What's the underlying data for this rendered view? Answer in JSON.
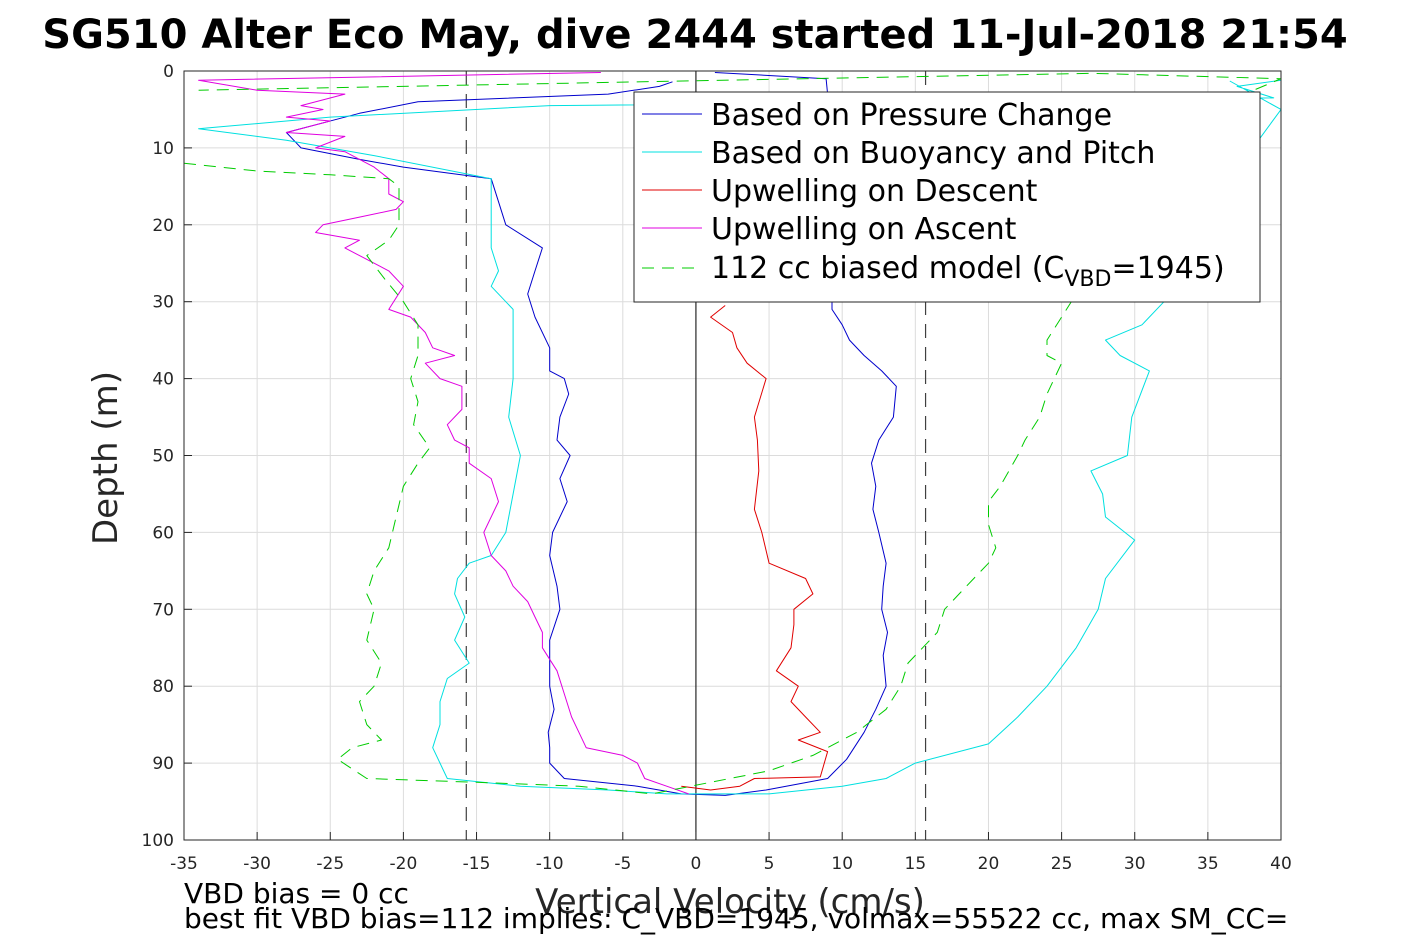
{
  "chart_data": {
    "type": "line",
    "title": "SG510 Alter Eco May, dive 2444 started 11-Jul-2018 21:54",
    "xlabel": "Vertical Velocity (cm/s)",
    "ylabel": "Depth (m)",
    "xlim": [
      -35,
      40
    ],
    "ylim": [
      0,
      100
    ],
    "y_reversed": true,
    "grid": true,
    "x_ticks": [
      "-35",
      "-30",
      "-25",
      "-20",
      "-15",
      "-10",
      "-5",
      "0",
      "5",
      "10",
      "15",
      "20",
      "25",
      "30",
      "35",
      "40"
    ],
    "y_ticks": [
      "0",
      "10",
      "20",
      "30",
      "40",
      "50",
      "60",
      "70",
      "80",
      "90",
      "100"
    ],
    "legend_position": "top-right",
    "legend": {
      "pressure": "Based on Pressure Change",
      "buoyancy": "Based on Buoyancy and Pitch",
      "up_descent": "Upwelling on Descent",
      "up_ascent": "Upwelling on Ascent",
      "model_prefix": "112 cc biased model (C",
      "model_sub": "VBD",
      "model_suffix": "=1945)"
    },
    "reference_lines": {
      "zero_x": 0,
      "dashed_x": [
        -15.7,
        15.7
      ]
    },
    "series": [
      {
        "name": "Based on Pressure Change",
        "key": "pressure",
        "color": "#0000cc",
        "style": "solid",
        "points": [
          [
            -1.6,
            1.4
          ],
          [
            -2.5,
            2
          ],
          [
            -6,
            3
          ],
          [
            -19,
            4
          ],
          [
            -23,
            5.5
          ],
          [
            -26,
            7
          ],
          [
            -28,
            8
          ],
          [
            -27.5,
            9
          ],
          [
            -27,
            10
          ],
          [
            -23,
            11.5
          ],
          [
            -20,
            12.5
          ],
          [
            -14,
            14
          ],
          [
            -13.5,
            17
          ],
          [
            -13,
            20
          ],
          [
            -10.5,
            23
          ],
          [
            -11,
            26
          ],
          [
            -11.5,
            29
          ],
          [
            -11,
            32
          ],
          [
            -10,
            36
          ],
          [
            -10,
            39
          ],
          [
            -9,
            40
          ],
          [
            -8.7,
            42
          ],
          [
            -9.3,
            45
          ],
          [
            -9.5,
            48
          ],
          [
            -8.6,
            50
          ],
          [
            -9.3,
            53
          ],
          [
            -8.8,
            56
          ],
          [
            -9.8,
            60
          ],
          [
            -10,
            63
          ],
          [
            -9.5,
            67
          ],
          [
            -9.3,
            70
          ],
          [
            -10,
            74
          ],
          [
            -10,
            77
          ],
          [
            -10,
            80
          ],
          [
            -9.7,
            83
          ],
          [
            -10.1,
            86
          ],
          [
            -10,
            88
          ],
          [
            -10,
            90
          ],
          [
            -9,
            92
          ],
          [
            -4,
            93
          ],
          [
            -1,
            94
          ],
          [
            2,
            94.2
          ],
          [
            4.8,
            93.5
          ],
          [
            9,
            92
          ],
          [
            10.3,
            89.5
          ],
          [
            11.5,
            86
          ],
          [
            12.3,
            83
          ],
          [
            13,
            80
          ],
          [
            12.8,
            76
          ],
          [
            13.1,
            73
          ],
          [
            12.7,
            70
          ],
          [
            12.8,
            67
          ],
          [
            13,
            64
          ],
          [
            12.5,
            60
          ],
          [
            12.1,
            57
          ],
          [
            12.3,
            54
          ],
          [
            12,
            51
          ],
          [
            12.5,
            48
          ],
          [
            13.5,
            45
          ],
          [
            13.7,
            41
          ],
          [
            12.7,
            39
          ],
          [
            11.5,
            37
          ],
          [
            10.5,
            35
          ],
          [
            10,
            33
          ],
          [
            9.3,
            31
          ],
          [
            9.3,
            30
          ],
          [
            9,
            10
          ],
          [
            9,
            6
          ],
          [
            9,
            3
          ],
          [
            8.9,
            1
          ],
          [
            1.3,
            0.2
          ]
        ]
      },
      {
        "name": "Based on Buoyancy and Pitch",
        "key": "buoyancy",
        "color": "#00e0e0",
        "style": "solid",
        "points": [
          [
            40,
            1.2
          ],
          [
            37,
            2
          ],
          [
            39.5,
            3.5
          ],
          [
            20,
            4
          ],
          [
            -10,
            4.5
          ],
          [
            -25,
            6
          ],
          [
            -34,
            7.5
          ],
          [
            -28,
            9
          ],
          [
            -22,
            11
          ],
          [
            -14,
            14
          ],
          [
            -14,
            17
          ],
          [
            -14,
            20
          ],
          [
            -14,
            23
          ],
          [
            -13.5,
            26
          ],
          [
            -14,
            28
          ],
          [
            -12.5,
            31
          ],
          [
            -12.5,
            35
          ],
          [
            -12.5,
            40
          ],
          [
            -12.8,
            45
          ],
          [
            -12,
            50
          ],
          [
            -12.5,
            55
          ],
          [
            -13,
            60
          ],
          [
            -14,
            63
          ],
          [
            -15.5,
            64
          ],
          [
            -16.3,
            66
          ],
          [
            -16.5,
            68
          ],
          [
            -15.8,
            71
          ],
          [
            -16.5,
            74
          ],
          [
            -15.5,
            77
          ],
          [
            -17,
            79
          ],
          [
            -17.5,
            82
          ],
          [
            -17.5,
            85
          ],
          [
            -18,
            88
          ],
          [
            -17.5,
            90
          ],
          [
            -17,
            92
          ],
          [
            -12,
            93
          ],
          [
            -6,
            93.5
          ],
          [
            -2,
            94
          ],
          [
            5,
            94
          ],
          [
            10,
            93
          ],
          [
            13,
            92
          ],
          [
            15,
            90
          ],
          [
            20,
            87.5
          ],
          [
            22,
            84
          ],
          [
            24,
            80
          ],
          [
            26,
            75
          ],
          [
            27.5,
            70
          ],
          [
            28,
            66
          ],
          [
            30,
            61
          ],
          [
            28,
            58
          ],
          [
            27.8,
            55
          ],
          [
            27,
            52
          ],
          [
            29.5,
            50
          ],
          [
            29.8,
            45
          ],
          [
            31,
            39
          ],
          [
            29,
            37
          ],
          [
            28,
            35
          ],
          [
            30.5,
            33
          ],
          [
            32,
            30
          ],
          [
            33,
            25
          ],
          [
            35,
            18
          ],
          [
            40,
            5
          ],
          [
            36.5,
            1.3
          ]
        ]
      },
      {
        "name": "Upwelling on Descent",
        "key": "up_descent",
        "color": "#e00000",
        "style": "solid",
        "points": [
          [
            -1,
            93
          ],
          [
            1,
            93.5
          ],
          [
            3,
            93
          ],
          [
            4,
            92
          ],
          [
            8.5,
            91.8
          ],
          [
            9,
            88.5
          ],
          [
            7,
            87
          ],
          [
            8.5,
            86
          ],
          [
            7.5,
            84
          ],
          [
            6.5,
            82
          ],
          [
            7,
            80
          ],
          [
            5.5,
            78
          ],
          [
            6.5,
            75
          ],
          [
            6.7,
            72
          ],
          [
            6.7,
            70
          ],
          [
            8,
            68
          ],
          [
            7.5,
            66
          ],
          [
            5,
            64
          ],
          [
            4.5,
            60
          ],
          [
            4,
            57
          ],
          [
            4.3,
            52
          ],
          [
            4.2,
            48
          ],
          [
            4,
            45
          ],
          [
            4.8,
            40
          ],
          [
            3.5,
            38
          ],
          [
            2.8,
            36
          ],
          [
            2.5,
            34
          ],
          [
            1,
            32
          ],
          [
            2,
            30.5
          ]
        ]
      },
      {
        "name": "Upwelling on Ascent",
        "key": "up_ascent",
        "color": "#e000e0",
        "style": "solid",
        "points": [
          [
            -6.5,
            0.2
          ],
          [
            -34,
            1.2
          ],
          [
            -30,
            2.5
          ],
          [
            -24,
            3
          ],
          [
            -27,
            4.5
          ],
          [
            -25.5,
            5
          ],
          [
            -28,
            6
          ],
          [
            -25,
            6.5
          ],
          [
            -28,
            8
          ],
          [
            -24,
            8.5
          ],
          [
            -26,
            10
          ],
          [
            -24,
            10.5
          ],
          [
            -22,
            12.5
          ],
          [
            -21,
            14
          ],
          [
            -21,
            16
          ],
          [
            -20,
            17
          ],
          [
            -20.5,
            18
          ],
          [
            -23,
            19
          ],
          [
            -25.5,
            20
          ],
          [
            -26,
            21
          ],
          [
            -23,
            22
          ],
          [
            -24,
            23
          ],
          [
            -23,
            24
          ],
          [
            -21,
            26
          ],
          [
            -20,
            28
          ],
          [
            -21,
            31
          ],
          [
            -19.5,
            32
          ],
          [
            -18.5,
            34
          ],
          [
            -18,
            36
          ],
          [
            -16.5,
            37
          ],
          [
            -18.5,
            38
          ],
          [
            -17.5,
            40
          ],
          [
            -16,
            41
          ],
          [
            -16,
            44
          ],
          [
            -17,
            46
          ],
          [
            -16.5,
            48
          ],
          [
            -15.5,
            49
          ],
          [
            -15.5,
            51
          ],
          [
            -14,
            53
          ],
          [
            -13.5,
            56
          ],
          [
            -14.5,
            60
          ],
          [
            -14,
            63
          ],
          [
            -13,
            65
          ],
          [
            -12.5,
            67
          ],
          [
            -11.5,
            69
          ],
          [
            -11,
            71
          ],
          [
            -10.5,
            73
          ],
          [
            -10.5,
            75
          ],
          [
            -9.5,
            78
          ],
          [
            -9,
            81
          ],
          [
            -8.5,
            84
          ],
          [
            -8,
            86
          ],
          [
            -7.5,
            88
          ],
          [
            -5,
            89
          ],
          [
            -4,
            90
          ],
          [
            -3.5,
            92
          ],
          [
            -2,
            93
          ],
          [
            -0.5,
            94
          ]
        ]
      },
      {
        "name": "112 cc biased model (CVBD=1945)",
        "key": "model",
        "color": "#00cc00",
        "style": "dashed",
        "points": [
          [
            -35,
            12
          ],
          [
            -30,
            13
          ],
          [
            -25,
            13.5
          ],
          [
            -21,
            14
          ],
          [
            -20.3,
            15
          ],
          [
            -20.3,
            20
          ],
          [
            -21,
            22
          ],
          [
            -22.5,
            24
          ],
          [
            -21.3,
            27
          ],
          [
            -20,
            30
          ],
          [
            -19,
            33
          ],
          [
            -19,
            37
          ],
          [
            -19.5,
            40
          ],
          [
            -19,
            43
          ],
          [
            -19.3,
            46
          ],
          [
            -18.2,
            49
          ],
          [
            -19,
            51
          ],
          [
            -20,
            54
          ],
          [
            -20.5,
            58
          ],
          [
            -21,
            62
          ],
          [
            -22,
            65
          ],
          [
            -22.5,
            68
          ],
          [
            -22,
            70
          ],
          [
            -22.5,
            74
          ],
          [
            -21.5,
            77
          ],
          [
            -22,
            80
          ],
          [
            -23,
            82
          ],
          [
            -22.5,
            85
          ],
          [
            -21.5,
            87
          ],
          [
            -23.5,
            88
          ],
          [
            -24.5,
            89.5
          ],
          [
            -22.5,
            92
          ],
          [
            -15,
            92.5
          ],
          [
            -8,
            93
          ],
          [
            -3,
            94
          ],
          [
            1,
            92.5
          ],
          [
            5,
            91
          ],
          [
            8,
            89
          ],
          [
            11,
            86
          ],
          [
            13,
            83
          ],
          [
            14,
            80
          ],
          [
            14.5,
            77
          ],
          [
            15.5,
            75
          ],
          [
            16.5,
            73
          ],
          [
            17,
            70
          ],
          [
            18,
            68
          ],
          [
            19,
            66
          ],
          [
            20,
            64
          ],
          [
            20.5,
            62
          ],
          [
            20,
            59
          ],
          [
            20,
            56
          ],
          [
            20.8,
            54
          ],
          [
            22,
            50
          ],
          [
            22.5,
            48
          ],
          [
            23.5,
            45
          ],
          [
            24,
            42
          ],
          [
            24.5,
            40
          ],
          [
            25,
            38
          ],
          [
            24,
            37
          ],
          [
            24,
            35
          ],
          [
            25,
            32
          ],
          [
            26,
            29
          ],
          [
            28,
            26
          ],
          [
            30,
            20
          ],
          [
            33,
            12
          ],
          [
            35,
            5
          ],
          [
            40,
            1
          ],
          [
            27,
            0.3
          ],
          [
            -34,
            2.5
          ]
        ]
      }
    ]
  },
  "footer": {
    "bias_text": "VBD bias = 0 cc",
    "fit_text": "best fit VBD bias=112 implies: C_VBD=1945, volmax=55522 cc, max SM_CC="
  }
}
